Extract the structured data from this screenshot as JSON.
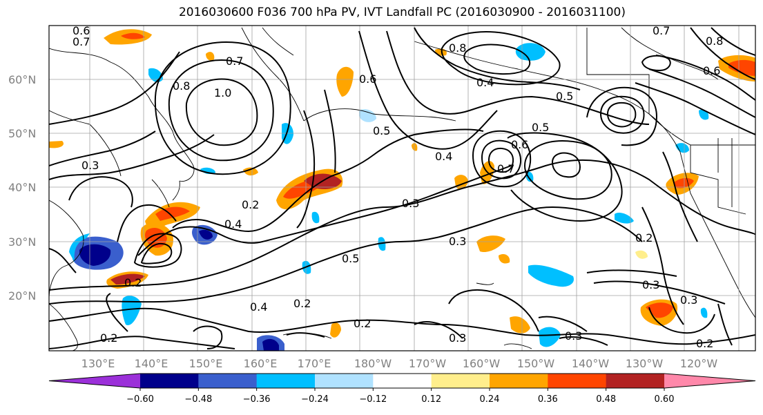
{
  "title": "2016030600 F036 700 hPa PV, IVT Landfall PC (2016030900 - 2016031100)",
  "lat_labels": [
    "60°N",
    "50°N",
    "40°N",
    "30°N",
    "20°N"
  ],
  "lon_labels": [
    "130°E",
    "140°E",
    "150°E",
    "160°E",
    "170°E",
    "180°W",
    "170°W",
    "160°W",
    "150°W",
    "140°W",
    "130°W",
    "120°W"
  ],
  "colorbar": {
    "colors": [
      "#9b30d9",
      "#00008b",
      "#3a5fcd",
      "#00bfff",
      "#b0e2ff",
      "#ffffff",
      "#ffee8c",
      "#ffa500",
      "#ff4500",
      "#b22222",
      "#ff88aa"
    ],
    "ticks": [
      "−0.60",
      "−0.48",
      "−0.36",
      "−0.24",
      "−0.12",
      "0.12",
      "0.24",
      "0.36",
      "0.48",
      "0.60"
    ]
  },
  "contour_labels": [
    "0.6",
    "0.7",
    "0.8",
    "1.0",
    "0.3",
    "0.2",
    "0.4",
    "0.5",
    "0.6",
    "0.7",
    "0.8",
    "0.5",
    "0.3",
    "0.2",
    "0.3",
    "0.5",
    "0.4",
    "0.2",
    "0.3",
    "0.2",
    "0.3",
    "0.4",
    "0.6",
    "0.7",
    "0.5",
    "0.8",
    "0.4",
    "0.3",
    "0.2",
    "0.7",
    "0.6",
    "0.2",
    "0.3",
    "0.2"
  ]
}
